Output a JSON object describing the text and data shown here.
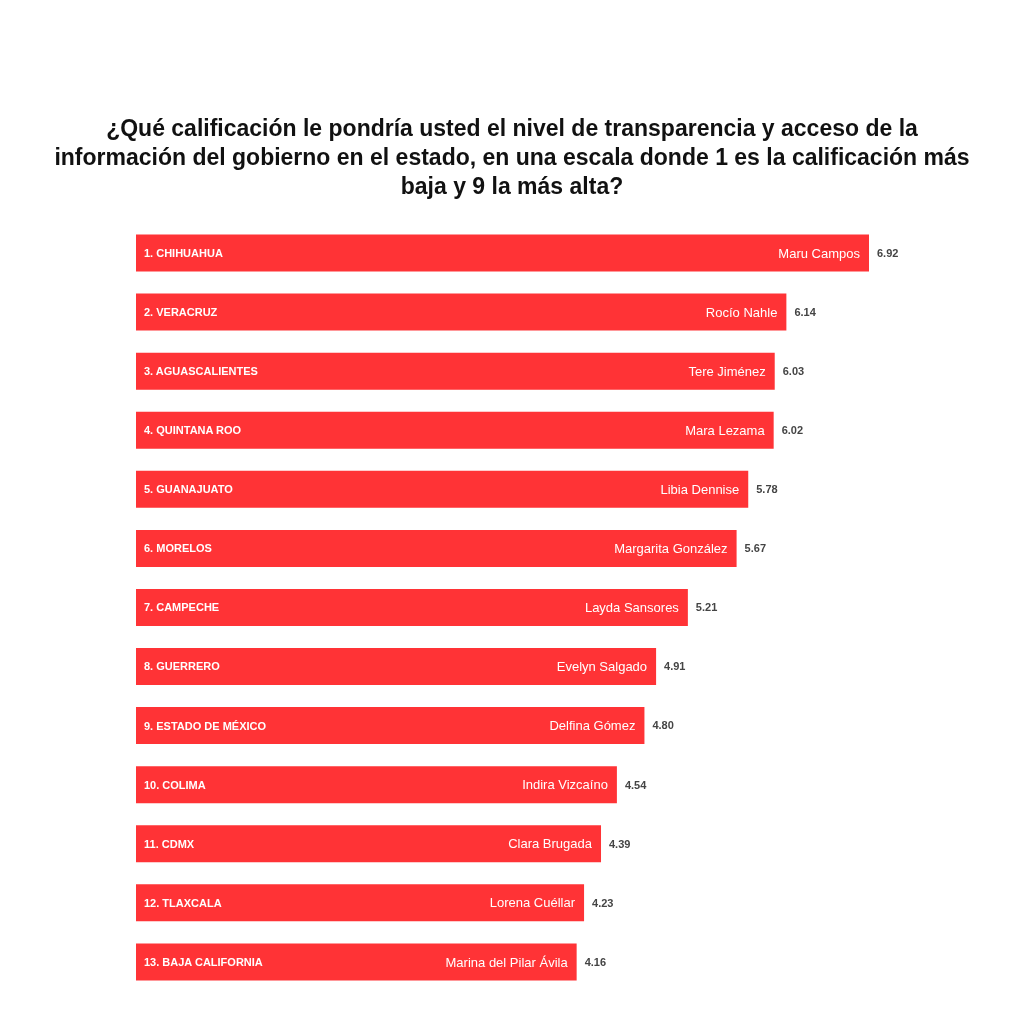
{
  "chart_data": {
    "type": "bar",
    "orientation": "horizontal",
    "title": "¿Qué calificación le pondría usted el nivel de transparencia y acceso de la información del gobierno en el estado, en una escala donde 1 es la calificación más baja y 9 la más alta?",
    "categories": [
      "1. CHIHUAHUA",
      "2. VERACRUZ",
      "3. AGUASCALIENTES",
      "4. QUINTANA ROO",
      "5. GUANAJUATO",
      "6. MORELOS",
      "7. CAMPECHE",
      "8. GUERRERO",
      "9. ESTADO DE MÉXICO",
      "10. COLIMA",
      "11. CDMX",
      "12. TLAXCALA",
      "13. BAJA CALIFORNIA"
    ],
    "values": [
      6.92,
      6.14,
      6.03,
      6.02,
      5.78,
      5.67,
      5.21,
      4.91,
      4.8,
      4.54,
      4.39,
      4.23,
      4.16
    ],
    "value_labels": [
      "6.92",
      "6.14",
      "6.03",
      "6.02",
      "5.78",
      "5.67",
      "5.21",
      "4.91",
      "4.80",
      "4.54",
      "4.39",
      "4.23",
      "4.16"
    ],
    "color": "#ff3336",
    "tick_labels": "y",
    "annotations": [
      {
        "text": "Maru Campos",
        "x": 6.92,
        "y": "1. CHIHUAHUA"
      },
      {
        "text": "Rocío Nahle",
        "x": 6.14,
        "y": "2. VERACRUZ"
      },
      {
        "text": "Tere Jiménez",
        "x": 6.03,
        "y": "3. AGUASCALIENTES"
      },
      {
        "text": "Mara Lezama",
        "x": 6.02,
        "y": "4. QUINTANA ROO"
      },
      {
        "text": "Libia Dennise",
        "x": 5.78,
        "y": "5. GUANAJUATO"
      },
      {
        "text": "Margarita González",
        "x": 5.67,
        "y": "6. MORELOS"
      },
      {
        "text": "Layda Sansores",
        "x": 5.21,
        "y": "7. CAMPECHE"
      },
      {
        "text": "Evelyn Salgado",
        "x": 4.91,
        "y": "8. GUERRERO"
      },
      {
        "text": "Delfina Gómez",
        "x": 4.8,
        "y": "9. ESTADO DE MÉXICO"
      },
      {
        "text": "Indira Vizcaíno",
        "x": 4.54,
        "y": "10. COLIMA"
      },
      {
        "text": "Clara Brugada",
        "x": 4.39,
        "y": "11. CDMX"
      },
      {
        "text": "Lorena Cuéllar",
        "x": 4.23,
        "y": "12. TLAXCALA"
      },
      {
        "text": "Marina del Pilar Ávila",
        "x": 4.16,
        "y": "13. BAJA CALIFORNIA"
      }
    ]
  }
}
